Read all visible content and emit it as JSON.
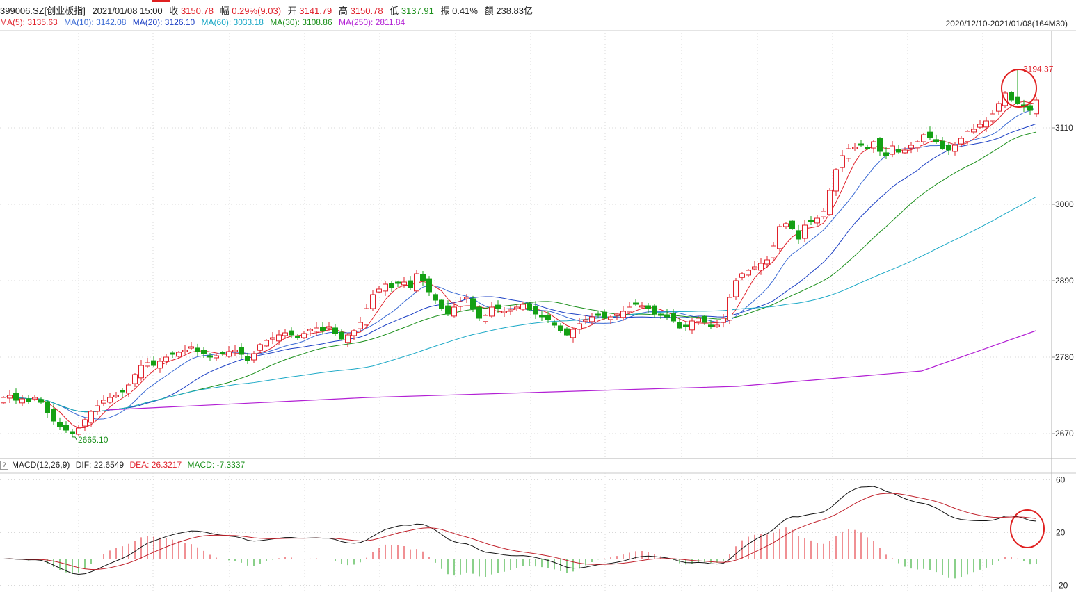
{
  "header": {
    "code": "399006.SZ[创业板指]",
    "datetime": "2021/01/08 15:00",
    "close_label": "收",
    "close": "3150.78",
    "pct_label": "幅",
    "pct": "0.29%(9.03)",
    "open_label": "开",
    "open": "3141.79",
    "high_label": "高",
    "high": "3150.78",
    "low_label": "低",
    "low": "3137.91",
    "amp_label": "振",
    "amp": "0.41%",
    "amt_label": "额",
    "amt": "238.83亿"
  },
  "ma_legend": [
    {
      "text": "MA(5): 3135.63",
      "color": "#e0202a"
    },
    {
      "text": "MA(10): 3142.08",
      "color": "#3a6ad4"
    },
    {
      "text": "MA(20): 3126.10",
      "color": "#1b3fc4"
    },
    {
      "text": "MA(60): 3033.18",
      "color": "#1aa8c6"
    },
    {
      "text": "MA(30): 3108.86",
      "color": "#1a8f1a"
    },
    {
      "text": "MA(250): 2811.84",
      "color": "#b21fd4"
    }
  ],
  "range_label": "2020/12/10-2021/01/08(164M30)",
  "macd_header": {
    "box": "?",
    "name": "MACD(12,26,9)",
    "dif": "DIF: 22.6549",
    "dea": "DEA: 26.3217",
    "macd": "MACD: -7.3337"
  },
  "colors": {
    "up": "#e0202a",
    "down": "#14a014",
    "grid": "#d8d8d8"
  },
  "chart_data": [
    {
      "type": "candlestick",
      "title": "",
      "y_ticks": [
        3110,
        3000,
        2890,
        2780,
        2670
      ],
      "ylim": [
        2635,
        3250
      ],
      "annotations": [
        {
          "label": "3194.37",
          "kind": "high",
          "bar": 162,
          "color": "#e0202a"
        },
        {
          "label": "2665.10",
          "kind": "low",
          "bar": 11,
          "color": "#1a8f1a"
        }
      ],
      "ohlc_anchor_close": [
        2722,
        2725,
        2718,
        2720,
        2716,
        2722,
        2715,
        2700,
        2688,
        2680,
        2675,
        2670,
        2678,
        2690,
        2702,
        2710,
        2718,
        2722,
        2725,
        2730,
        2740,
        2755,
        2768,
        2772,
        2768,
        2774,
        2780,
        2784,
        2787,
        2790,
        2795,
        2788,
        2785,
        2780,
        2782,
        2785,
        2788,
        2790,
        2784,
        2775,
        2785,
        2798,
        2804,
        2808,
        2812,
        2815,
        2812,
        2808,
        2814,
        2820,
        2822,
        2818,
        2824,
        2814,
        2806,
        2812,
        2818,
        2830,
        2850,
        2870,
        2878,
        2885,
        2880,
        2886,
        2888,
        2880,
        2900,
        2890,
        2874,
        2862,
        2850,
        2842,
        2852,
        2860,
        2866,
        2850,
        2836,
        2840,
        2852,
        2850,
        2846,
        2848,
        2852,
        2856,
        2848,
        2842,
        2838,
        2834,
        2826,
        2818,
        2812,
        2820,
        2828,
        2834,
        2838,
        2840,
        2836,
        2838,
        2842,
        2846,
        2852,
        2856,
        2854,
        2850,
        2842,
        2840,
        2838,
        2832,
        2822,
        2824,
        2832,
        2836,
        2830,
        2824,
        2826,
        2836,
        2866,
        2890,
        2900,
        2905,
        2910,
        2915,
        2920,
        2940,
        2968,
        2972,
        2965,
        2950,
        2970,
        2975,
        2980,
        2990,
        3020,
        3050,
        3070,
        3080,
        3082,
        3085,
        3080,
        3090,
        3076,
        3070,
        3084,
        3075,
        3078,
        3085,
        3090,
        3100,
        3096,
        3090,
        3080,
        3078,
        3085,
        3095,
        3105,
        3108,
        3115,
        3120,
        3130,
        3145,
        3160,
        3150,
        3145,
        3140,
        3135,
        3150
      ],
      "series": [
        {
          "name": "MA(5)",
          "color": "#e0202a"
        },
        {
          "name": "MA(10)",
          "color": "#3a6ad4"
        },
        {
          "name": "MA(20)",
          "color": "#1b3fc4"
        },
        {
          "name": "MA(30)",
          "color": "#1a8f1a"
        },
        {
          "name": "MA(60)",
          "color": "#1aa8c6"
        },
        {
          "name": "MA(250)",
          "color": "#b21fd4",
          "values": [
            [
              29,
              2704
            ],
            [
              100,
              2722
            ],
            [
              200,
              2738
            ],
            [
              250,
              2760
            ],
            [
              281,
              2818
            ]
          ]
        }
      ]
    },
    {
      "type": "macd",
      "y_ticks": [
        60,
        20,
        -20
      ],
      "ylim": [
        -25,
        65
      ],
      "series": [
        {
          "name": "DIF",
          "color": "#111111"
        },
        {
          "name": "DEA",
          "color": "#c0202a"
        },
        {
          "name": "MACD",
          "up_color": "#e0202a",
          "down_color": "#14a014"
        }
      ]
    }
  ]
}
